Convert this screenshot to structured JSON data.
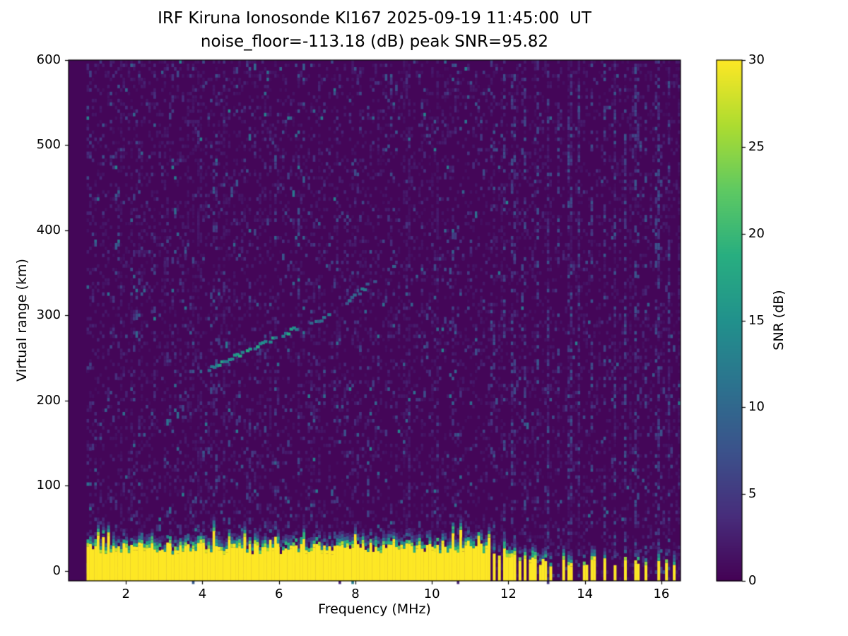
{
  "chart_data": {
    "type": "heatmap",
    "title": "IRF Kiruna Ionosonde KI167 2025-09-19 11:45:00  UT",
    "subtitle": "noise_floor=-113.18 (dB) peak SNR=95.82",
    "xlabel": "Frequency (MHz)",
    "ylabel": "Virtual range (km)",
    "xlim": [
      0.5,
      16.5
    ],
    "ylim": [
      -12,
      600
    ],
    "x_ticks": [
      2,
      4,
      6,
      8,
      10,
      12,
      14,
      16
    ],
    "y_ticks": [
      0,
      100,
      200,
      300,
      400,
      500,
      600
    ],
    "colorbar": {
      "label": "SNR (dB)",
      "min": 0,
      "max": 30,
      "ticks": [
        0,
        5,
        10,
        15,
        20,
        25,
        30
      ],
      "colormap": "viridis",
      "stops": [
        [
          0,
          "#440154"
        ],
        [
          0.125,
          "#472d7b"
        ],
        [
          0.25,
          "#3b528b"
        ],
        [
          0.375,
          "#2c728e"
        ],
        [
          0.5,
          "#21918c"
        ],
        [
          0.625,
          "#28ae80"
        ],
        [
          0.75,
          "#5ec962"
        ],
        [
          0.875,
          "#addc30"
        ],
        [
          1,
          "#fde725"
        ]
      ]
    },
    "features": {
      "seed": 167,
      "freq_start": 0.95,
      "background_snr": 0.4,
      "noise_speckle_density": 0.06,
      "ground_clutter": {
        "freq_end_continuous": 11.55,
        "base_top_km": 24,
        "top_jitter_km": 14,
        "bars_after": [
          [
            11.62,
            20
          ],
          [
            11.75,
            16
          ],
          [
            11.88,
            22
          ],
          [
            12.0,
            14
          ],
          [
            12.12,
            18
          ],
          [
            12.28,
            12
          ],
          [
            12.42,
            16
          ],
          [
            12.55,
            8
          ],
          [
            12.68,
            14
          ],
          [
            12.82,
            6
          ],
          [
            12.95,
            10
          ],
          [
            13.1,
            6
          ],
          [
            13.45,
            14
          ],
          [
            13.62,
            6
          ],
          [
            14.0,
            8
          ],
          [
            14.22,
            12
          ],
          [
            14.5,
            10
          ],
          [
            14.78,
            6
          ],
          [
            15.05,
            12
          ],
          [
            15.35,
            8
          ],
          [
            15.6,
            6
          ],
          [
            15.92,
            12
          ],
          [
            16.15,
            8
          ],
          [
            16.32,
            6
          ]
        ]
      },
      "echo_traces": [
        {
          "points": [
            [
              4.1,
              238
            ],
            [
              4.5,
              247
            ],
            [
              4.9,
              255
            ],
            [
              5.3,
              263
            ],
            [
              5.7,
              271
            ],
            [
              6.1,
              280
            ],
            [
              6.45,
              288
            ]
          ],
          "snr": 14,
          "density": 0.8
        },
        {
          "points": [
            [
              6.7,
              289
            ],
            [
              7.1,
              296
            ],
            [
              7.5,
              308
            ],
            [
              7.9,
              322
            ],
            [
              8.3,
              338
            ],
            [
              8.7,
              352
            ],
            [
              9.0,
              363
            ]
          ],
          "snr": 10.5,
          "density": 0.5
        }
      ],
      "interference_freqs": [
        11.58,
        11.9,
        12.14,
        12.45,
        12.75,
        13.05,
        13.3,
        13.6,
        13.86,
        14.2,
        14.5,
        14.8,
        15.06,
        15.35,
        15.61,
        15.89,
        16.2
      ]
    }
  }
}
